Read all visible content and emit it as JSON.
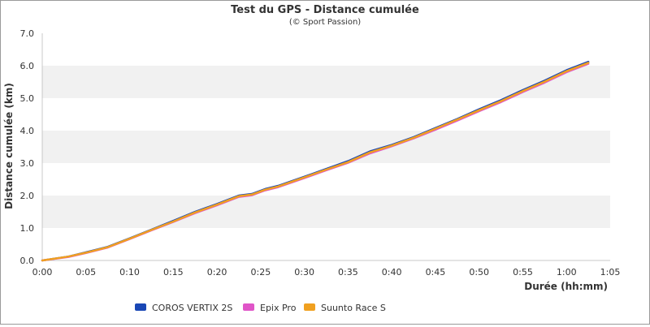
{
  "chart_data": {
    "type": "line",
    "title": "Test du GPS - Distance cumulée",
    "subtitle": "(© Sport Passion)",
    "xlabel": "Durée (hh:mm)",
    "ylabel": "Distance cumulée (km)",
    "x_ticks": [
      "0:00",
      "0:05",
      "0:10",
      "0:15",
      "0:20",
      "0:25",
      "0:30",
      "0:35",
      "0:40",
      "0:45",
      "0:50",
      "0:55",
      "1:00",
      "1:05"
    ],
    "y_ticks": [
      "0.0",
      "1.0",
      "2.0",
      "3.0",
      "4.0",
      "5.0",
      "6.0",
      "7.0"
    ],
    "xlim_minutes": [
      0,
      65
    ],
    "ylim": [
      0,
      7
    ],
    "grid": "alternating horizontal bands",
    "legend_position": "bottom",
    "x_minutes": [
      0,
      3,
      5,
      7.5,
      10,
      12.5,
      15,
      17.5,
      20,
      22.5,
      24,
      25.5,
      27,
      30,
      32.5,
      35,
      37.5,
      40,
      42.5,
      45,
      47.5,
      50,
      52.5,
      55,
      57.5,
      60,
      62.5
    ],
    "series": [
      {
        "name": "COROS VERTIX 2S",
        "color": "#1947b5",
        "values": [
          0,
          0.12,
          0.25,
          0.42,
          0.68,
          0.95,
          1.22,
          1.5,
          1.74,
          2.0,
          2.05,
          2.2,
          2.3,
          2.58,
          2.82,
          3.06,
          3.36,
          3.56,
          3.8,
          4.08,
          4.36,
          4.66,
          4.94,
          5.25,
          5.54,
          5.86,
          6.12
        ]
      },
      {
        "name": "Epix Pro",
        "color": "#e055c8",
        "values": [
          0,
          0.11,
          0.23,
          0.4,
          0.66,
          0.93,
          1.19,
          1.46,
          1.7,
          1.96,
          2.01,
          2.16,
          2.26,
          2.54,
          2.78,
          3.01,
          3.3,
          3.52,
          3.76,
          4.03,
          4.31,
          4.6,
          4.88,
          5.19,
          5.48,
          5.8,
          6.06
        ]
      },
      {
        "name": "Suunto Race S",
        "color": "#f0a020",
        "values": [
          0,
          0.12,
          0.24,
          0.41,
          0.67,
          0.94,
          1.2,
          1.48,
          1.72,
          1.98,
          2.03,
          2.18,
          2.28,
          2.56,
          2.8,
          3.03,
          3.33,
          3.54,
          3.78,
          4.06,
          4.34,
          4.63,
          4.91,
          5.22,
          5.51,
          5.83,
          6.09
        ]
      }
    ]
  }
}
